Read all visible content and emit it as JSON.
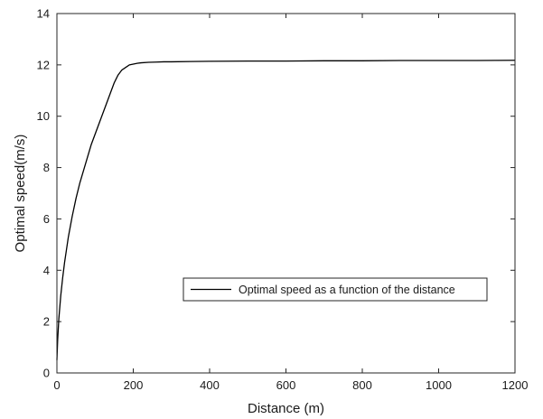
{
  "chart_data": {
    "type": "line",
    "title": "",
    "xlabel": "Distance (m)",
    "ylabel": "Optimal speed(m/s)",
    "xlim": [
      0,
      1200
    ],
    "ylim": [
      0,
      14
    ],
    "xticks": [
      0,
      200,
      400,
      600,
      800,
      1000,
      1200
    ],
    "yticks": [
      0,
      2,
      4,
      6,
      8,
      10,
      12,
      14
    ],
    "grid": false,
    "legend": {
      "placement": "center-right",
      "entries": [
        "Optimal speed as a function of the distance"
      ]
    },
    "colors": {
      "line": "#000000",
      "axes": "#262626"
    },
    "series": [
      {
        "name": "Optimal speed as a function of the distance",
        "x": [
          0,
          2,
          5,
          10,
          15,
          20,
          25,
          30,
          40,
          50,
          60,
          70,
          80,
          90,
          100,
          110,
          120,
          130,
          140,
          150,
          160,
          170,
          180,
          190,
          200,
          210,
          220,
          240,
          260,
          280,
          300,
          350,
          400,
          500,
          600,
          700,
          800,
          900,
          1000,
          1100,
          1200
        ],
        "y": [
          0.5,
          1.3,
          2.1,
          3.0,
          3.7,
          4.3,
          4.8,
          5.3,
          6.1,
          6.8,
          7.4,
          7.9,
          8.4,
          8.9,
          9.3,
          9.7,
          10.1,
          10.5,
          10.9,
          11.3,
          11.6,
          11.8,
          11.9,
          12.0,
          12.03,
          12.06,
          12.08,
          12.1,
          12.11,
          12.12,
          12.12,
          12.13,
          12.14,
          12.15,
          12.15,
          12.16,
          12.16,
          12.17,
          12.17,
          12.17,
          12.18
        ]
      }
    ]
  }
}
